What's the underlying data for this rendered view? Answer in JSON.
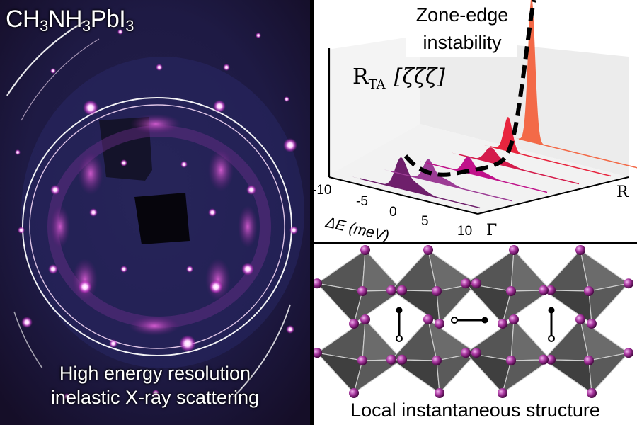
{
  "left_panel": {
    "formula": {
      "c": "CH",
      "s1": "3",
      "n": "NH",
      "s2": "3",
      "pb": "PbI",
      "s3": "3"
    },
    "caption_line1": "High energy resolution",
    "caption_line2": "inelastic X-ray scattering"
  },
  "chart_data": {
    "type": "3d-spectra",
    "annotation_line1": "Zone-edge",
    "annotation_line2": "instability",
    "mode_label": "R",
    "mode_sub": "TA",
    "direction": "[ζζζ]",
    "xlabel": "ΔE (meV)",
    "x_ticks": [
      "-10",
      "-5",
      "0",
      "5",
      "10"
    ],
    "q_start": "Γ",
    "q_end": "R",
    "series_colors": [
      "#6e1f6b",
      "#9c3c95",
      "#c0128a",
      "#d41c4c",
      "#e8253e",
      "#f36a48"
    ]
  },
  "right_bottom": {
    "caption": "Local instantaneous structure"
  }
}
